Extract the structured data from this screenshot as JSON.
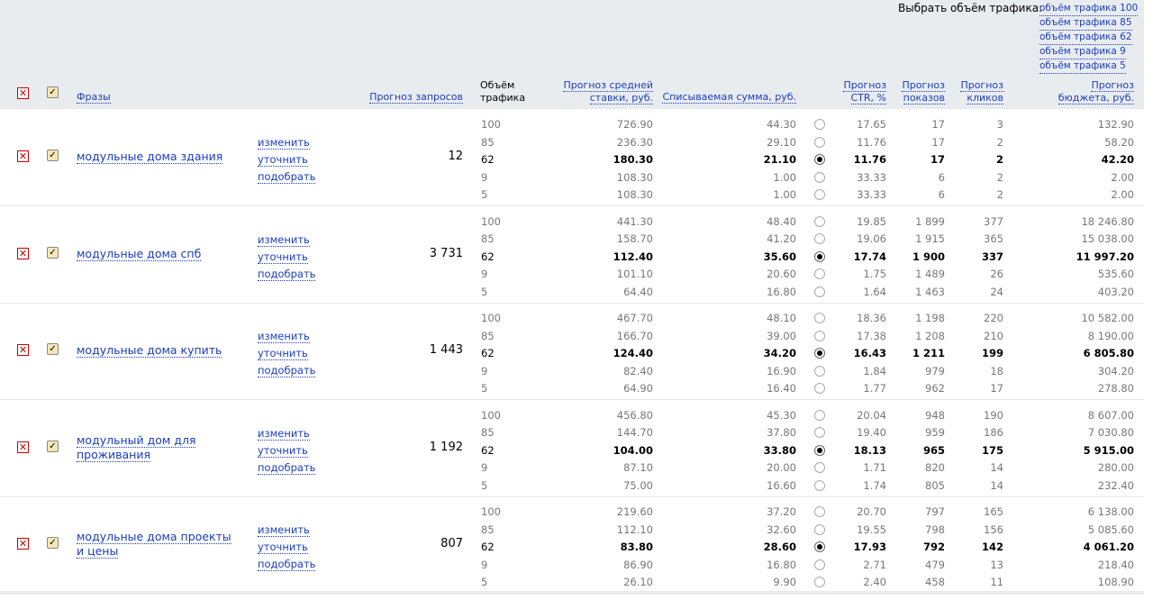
{
  "traffic_selector": {
    "label": "Выбрать объём трафика:",
    "options": [
      "объём трафика 100",
      "объём трафика 85",
      "объём трафика 62",
      "объём трафика 9",
      "объём трафика 5"
    ]
  },
  "columns": {
    "phrases": "Фразы",
    "requests": "Прогноз запросов",
    "volume": [
      "Объём",
      "трафика"
    ],
    "avg_bid": [
      "Прогноз средней",
      "ставки, руб."
    ],
    "charge": "Списываемая сумма, руб.",
    "ctr": [
      "Прогноз",
      "CTR, %"
    ],
    "shows": [
      "Прогноз",
      "показов"
    ],
    "clicks": [
      "Прогноз",
      "кликов"
    ],
    "budget": [
      "Прогноз",
      "бюджета, руб."
    ]
  },
  "actions": [
    "изменить",
    "уточнить",
    "подобрать"
  ],
  "groups": [
    {
      "phrase": "модульные дома здания",
      "requests": "12",
      "rows": [
        {
          "vol": "100",
          "bid": "726.90",
          "charge": "44.30",
          "ctr": "17.65",
          "shows": "17",
          "clicks": "3",
          "budget": "132.90"
        },
        {
          "vol": "85",
          "bid": "236.30",
          "charge": "29.10",
          "ctr": "11.76",
          "shows": "17",
          "clicks": "2",
          "budget": "58.20"
        },
        {
          "vol": "62",
          "bid": "180.30",
          "charge": "21.10",
          "ctr": "11.76",
          "shows": "17",
          "clicks": "2",
          "budget": "42.20",
          "selected": true
        },
        {
          "vol": "9",
          "bid": "108.30",
          "charge": "1.00",
          "ctr": "33.33",
          "shows": "6",
          "clicks": "2",
          "budget": "2.00"
        },
        {
          "vol": "5",
          "bid": "108.30",
          "charge": "1.00",
          "ctr": "33.33",
          "shows": "6",
          "clicks": "2",
          "budget": "2.00"
        }
      ]
    },
    {
      "phrase": "модульные дома спб",
      "requests": "3 731",
      "rows": [
        {
          "vol": "100",
          "bid": "441.30",
          "charge": "48.40",
          "ctr": "19.85",
          "shows": "1 899",
          "clicks": "377",
          "budget": "18 246.80"
        },
        {
          "vol": "85",
          "bid": "158.70",
          "charge": "41.20",
          "ctr": "19.06",
          "shows": "1 915",
          "clicks": "365",
          "budget": "15 038.00"
        },
        {
          "vol": "62",
          "bid": "112.40",
          "charge": "35.60",
          "ctr": "17.74",
          "shows": "1 900",
          "clicks": "337",
          "budget": "11 997.20",
          "selected": true
        },
        {
          "vol": "9",
          "bid": "101.10",
          "charge": "20.60",
          "ctr": "1.75",
          "shows": "1 489",
          "clicks": "26",
          "budget": "535.60"
        },
        {
          "vol": "5",
          "bid": "64.40",
          "charge": "16.80",
          "ctr": "1.64",
          "shows": "1 463",
          "clicks": "24",
          "budget": "403.20"
        }
      ]
    },
    {
      "phrase": "модульные дома купить",
      "requests": "1 443",
      "rows": [
        {
          "vol": "100",
          "bid": "467.70",
          "charge": "48.10",
          "ctr": "18.36",
          "shows": "1 198",
          "clicks": "220",
          "budget": "10 582.00"
        },
        {
          "vol": "85",
          "bid": "166.70",
          "charge": "39.00",
          "ctr": "17.38",
          "shows": "1 208",
          "clicks": "210",
          "budget": "8 190.00"
        },
        {
          "vol": "62",
          "bid": "124.40",
          "charge": "34.20",
          "ctr": "16.43",
          "shows": "1 211",
          "clicks": "199",
          "budget": "6 805.80",
          "selected": true
        },
        {
          "vol": "9",
          "bid": "82.40",
          "charge": "16.90",
          "ctr": "1.84",
          "shows": "979",
          "clicks": "18",
          "budget": "304.20"
        },
        {
          "vol": "5",
          "bid": "64.90",
          "charge": "16.40",
          "ctr": "1.77",
          "shows": "962",
          "clicks": "17",
          "budget": "278.80"
        }
      ]
    },
    {
      "phrase": "модульный дом для проживания",
      "requests": "1 192",
      "rows": [
        {
          "vol": "100",
          "bid": "456.80",
          "charge": "45.30",
          "ctr": "20.04",
          "shows": "948",
          "clicks": "190",
          "budget": "8 607.00"
        },
        {
          "vol": "85",
          "bid": "144.70",
          "charge": "37.80",
          "ctr": "19.40",
          "shows": "959",
          "clicks": "186",
          "budget": "7 030.80"
        },
        {
          "vol": "62",
          "bid": "104.00",
          "charge": "33.80",
          "ctr": "18.13",
          "shows": "965",
          "clicks": "175",
          "budget": "5 915.00",
          "selected": true
        },
        {
          "vol": "9",
          "bid": "87.10",
          "charge": "20.00",
          "ctr": "1.71",
          "shows": "820",
          "clicks": "14",
          "budget": "280.00"
        },
        {
          "vol": "5",
          "bid": "75.00",
          "charge": "16.60",
          "ctr": "1.74",
          "shows": "805",
          "clicks": "14",
          "budget": "232.40"
        }
      ]
    },
    {
      "phrase": "модульные дома проекты и цены",
      "requests": "807",
      "rows": [
        {
          "vol": "100",
          "bid": "219.60",
          "charge": "37.20",
          "ctr": "20.70",
          "shows": "797",
          "clicks": "165",
          "budget": "6 138.00"
        },
        {
          "vol": "85",
          "bid": "112.10",
          "charge": "32.60",
          "ctr": "19.55",
          "shows": "798",
          "clicks": "156",
          "budget": "5 085.60"
        },
        {
          "vol": "62",
          "bid": "83.80",
          "charge": "28.60",
          "ctr": "17.93",
          "shows": "792",
          "clicks": "142",
          "budget": "4 061.20",
          "selected": true
        },
        {
          "vol": "9",
          "bid": "86.90",
          "charge": "16.80",
          "ctr": "2.71",
          "shows": "479",
          "clicks": "13",
          "budget": "218.40"
        },
        {
          "vol": "5",
          "bid": "26.10",
          "charge": "9.90",
          "ctr": "2.40",
          "shows": "458",
          "clicks": "11",
          "budget": "108.90"
        }
      ]
    }
  ]
}
